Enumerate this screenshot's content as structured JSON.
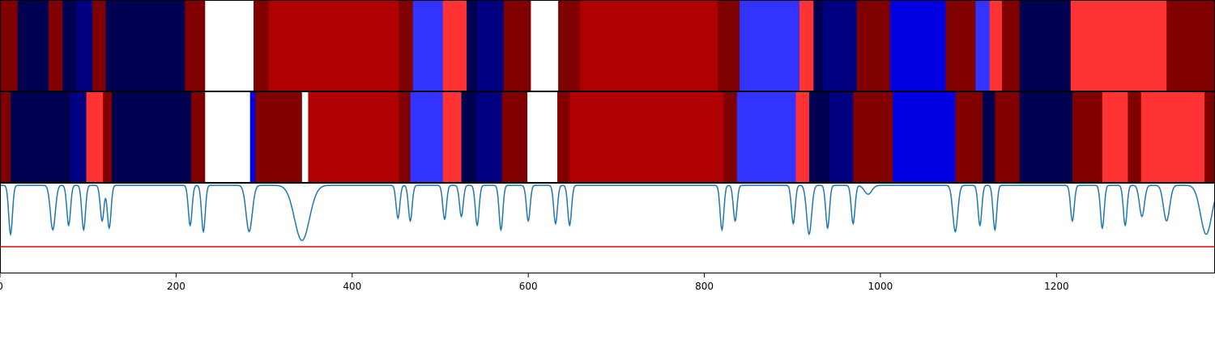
{
  "chart_data": {
    "type": "heatmap",
    "x_range": [
      0,
      1380
    ],
    "x_ticks": [
      0,
      200,
      400,
      600,
      800,
      1000,
      1200
    ],
    "x_tick_labels": [
      "0",
      "200",
      "400",
      "600",
      "800",
      "1000",
      "1200"
    ],
    "colors": {
      "white": "#ffffff",
      "light_red": "#ff3333",
      "red": "#b00000",
      "dark_red": "#800000",
      "light_blue": "#3333ff",
      "blue": "#0000e0",
      "navy": "#000080",
      "dark_navy": "#000050",
      "signal_line": "#1f77b4",
      "threshold_line": "#e00000"
    },
    "tracks": [
      {
        "segments": [
          {
            "start": 0,
            "end": 20,
            "color": "dark_red"
          },
          {
            "start": 20,
            "end": 55,
            "color": "dark_navy"
          },
          {
            "start": 55,
            "end": 71,
            "color": "dark_red"
          },
          {
            "start": 71,
            "end": 87,
            "color": "dark_navy"
          },
          {
            "start": 87,
            "end": 105,
            "color": "navy"
          },
          {
            "start": 105,
            "end": 120,
            "color": "dark_red"
          },
          {
            "start": 120,
            "end": 210,
            "color": "dark_navy"
          },
          {
            "start": 210,
            "end": 233,
            "color": "dark_red"
          },
          {
            "start": 233,
            "end": 288,
            "color": "white"
          },
          {
            "start": 288,
            "end": 305,
            "color": "dark_red"
          },
          {
            "start": 305,
            "end": 453,
            "color": "red"
          },
          {
            "start": 453,
            "end": 469,
            "color": "dark_red"
          },
          {
            "start": 469,
            "end": 503,
            "color": "light_blue"
          },
          {
            "start": 503,
            "end": 530,
            "color": "light_red"
          },
          {
            "start": 530,
            "end": 542,
            "color": "dark_navy"
          },
          {
            "start": 542,
            "end": 572,
            "color": "navy"
          },
          {
            "start": 572,
            "end": 603,
            "color": "dark_red"
          },
          {
            "start": 603,
            "end": 634,
            "color": "white"
          },
          {
            "start": 634,
            "end": 659,
            "color": "dark_red"
          },
          {
            "start": 659,
            "end": 815,
            "color": "red"
          },
          {
            "start": 815,
            "end": 840,
            "color": "dark_red"
          },
          {
            "start": 840,
            "end": 908,
            "color": "light_blue"
          },
          {
            "start": 908,
            "end": 924,
            "color": "light_red"
          },
          {
            "start": 924,
            "end": 935,
            "color": "dark_navy"
          },
          {
            "start": 935,
            "end": 973,
            "color": "navy"
          },
          {
            "start": 973,
            "end": 1011,
            "color": "dark_red"
          },
          {
            "start": 1011,
            "end": 1074,
            "color": "blue"
          },
          {
            "start": 1074,
            "end": 1108,
            "color": "dark_red"
          },
          {
            "start": 1108,
            "end": 1124,
            "color": "light_blue"
          },
          {
            "start": 1124,
            "end": 1138,
            "color": "light_red"
          },
          {
            "start": 1138,
            "end": 1158,
            "color": "dark_red"
          },
          {
            "start": 1158,
            "end": 1216,
            "color": "dark_navy"
          },
          {
            "start": 1216,
            "end": 1325,
            "color": "light_red"
          },
          {
            "start": 1325,
            "end": 1380,
            "color": "dark_red"
          }
        ]
      },
      {
        "segments": [
          {
            "start": 0,
            "end": 12,
            "color": "dark_red"
          },
          {
            "start": 12,
            "end": 63,
            "color": "dark_navy"
          },
          {
            "start": 63,
            "end": 80,
            "color": "dark_navy"
          },
          {
            "start": 80,
            "end": 98,
            "color": "navy"
          },
          {
            "start": 98,
            "end": 117,
            "color": "light_red"
          },
          {
            "start": 117,
            "end": 127,
            "color": "dark_red"
          },
          {
            "start": 127,
            "end": 217,
            "color": "dark_navy"
          },
          {
            "start": 217,
            "end": 233,
            "color": "dark_red"
          },
          {
            "start": 233,
            "end": 284,
            "color": "white"
          },
          {
            "start": 284,
            "end": 290,
            "color": "blue"
          },
          {
            "start": 290,
            "end": 343,
            "color": "dark_red"
          },
          {
            "start": 343,
            "end": 350,
            "color": "white"
          },
          {
            "start": 350,
            "end": 453,
            "color": "red"
          },
          {
            "start": 453,
            "end": 466,
            "color": "dark_red"
          },
          {
            "start": 466,
            "end": 503,
            "color": "light_blue"
          },
          {
            "start": 503,
            "end": 524,
            "color": "light_red"
          },
          {
            "start": 524,
            "end": 541,
            "color": "dark_navy"
          },
          {
            "start": 541,
            "end": 570,
            "color": "navy"
          },
          {
            "start": 570,
            "end": 599,
            "color": "dark_red"
          },
          {
            "start": 599,
            "end": 633,
            "color": "white"
          },
          {
            "start": 633,
            "end": 647,
            "color": "dark_red"
          },
          {
            "start": 647,
            "end": 822,
            "color": "red"
          },
          {
            "start": 822,
            "end": 837,
            "color": "dark_red"
          },
          {
            "start": 837,
            "end": 904,
            "color": "light_blue"
          },
          {
            "start": 904,
            "end": 919,
            "color": "light_red"
          },
          {
            "start": 919,
            "end": 942,
            "color": "dark_navy"
          },
          {
            "start": 942,
            "end": 969,
            "color": "navy"
          },
          {
            "start": 969,
            "end": 1014,
            "color": "dark_red"
          },
          {
            "start": 1014,
            "end": 1085,
            "color": "blue"
          },
          {
            "start": 1085,
            "end": 1116,
            "color": "dark_red"
          },
          {
            "start": 1116,
            "end": 1130,
            "color": "dark_navy"
          },
          {
            "start": 1130,
            "end": 1158,
            "color": "dark_red"
          },
          {
            "start": 1158,
            "end": 1218,
            "color": "dark_navy"
          },
          {
            "start": 1218,
            "end": 1252,
            "color": "dark_red"
          },
          {
            "start": 1252,
            "end": 1281,
            "color": "light_red"
          },
          {
            "start": 1281,
            "end": 1296,
            "color": "dark_red"
          },
          {
            "start": 1296,
            "end": 1368,
            "color": "light_red"
          },
          {
            "start": 1368,
            "end": 1380,
            "color": "dark_red"
          }
        ]
      }
    ],
    "signal": {
      "y_range": [
        0,
        1
      ],
      "threshold": 0.3,
      "baseline": 0.99,
      "dips": [
        {
          "x": 12,
          "depth": 0.55,
          "width": 3
        },
        {
          "x": 60,
          "depth": 0.5,
          "width": 4
        },
        {
          "x": 78,
          "depth": 0.45,
          "width": 3
        },
        {
          "x": 95,
          "depth": 0.5,
          "width": 3
        },
        {
          "x": 116,
          "depth": 0.4,
          "width": 3
        },
        {
          "x": 124,
          "depth": 0.48,
          "width": 3
        },
        {
          "x": 216,
          "depth": 0.45,
          "width": 3
        },
        {
          "x": 231,
          "depth": 0.52,
          "width": 3
        },
        {
          "x": 283,
          "depth": 0.52,
          "width": 5
        },
        {
          "x": 343,
          "depth": 0.62,
          "width": 12
        },
        {
          "x": 452,
          "depth": 0.37,
          "width": 3
        },
        {
          "x": 466,
          "depth": 0.4,
          "width": 3
        },
        {
          "x": 505,
          "depth": 0.38,
          "width": 3
        },
        {
          "x": 524,
          "depth": 0.35,
          "width": 3
        },
        {
          "x": 542,
          "depth": 0.45,
          "width": 3
        },
        {
          "x": 569,
          "depth": 0.5,
          "width": 3
        },
        {
          "x": 600,
          "depth": 0.4,
          "width": 3
        },
        {
          "x": 631,
          "depth": 0.43,
          "width": 3
        },
        {
          "x": 647,
          "depth": 0.45,
          "width": 3
        },
        {
          "x": 820,
          "depth": 0.5,
          "width": 3
        },
        {
          "x": 835,
          "depth": 0.4,
          "width": 3
        },
        {
          "x": 901,
          "depth": 0.43,
          "width": 3
        },
        {
          "x": 919,
          "depth": 0.55,
          "width": 4
        },
        {
          "x": 940,
          "depth": 0.48,
          "width": 3
        },
        {
          "x": 969,
          "depth": 0.43,
          "width": 3
        },
        {
          "x": 986,
          "depth": 0.1,
          "width": 6
        },
        {
          "x": 1085,
          "depth": 0.52,
          "width": 4
        },
        {
          "x": 1113,
          "depth": 0.45,
          "width": 3
        },
        {
          "x": 1130,
          "depth": 0.5,
          "width": 3
        },
        {
          "x": 1218,
          "depth": 0.4,
          "width": 3
        },
        {
          "x": 1252,
          "depth": 0.48,
          "width": 3
        },
        {
          "x": 1278,
          "depth": 0.45,
          "width": 3
        },
        {
          "x": 1297,
          "depth": 0.35,
          "width": 4
        },
        {
          "x": 1325,
          "depth": 0.4,
          "width": 5
        },
        {
          "x": 1370,
          "depth": 0.55,
          "width": 9
        }
      ]
    }
  }
}
